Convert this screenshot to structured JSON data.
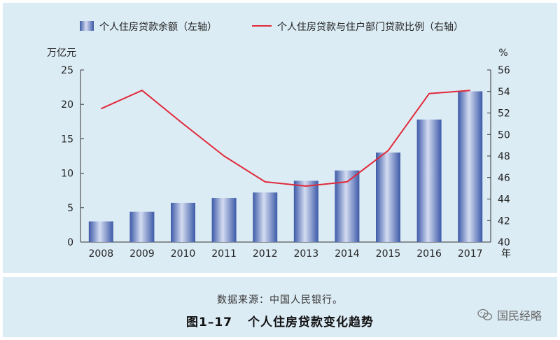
{
  "chart_data": {
    "type": "bar",
    "categories": [
      "2008",
      "2009",
      "2010",
      "2011",
      "2012",
      "2013",
      "2014",
      "2015",
      "2016",
      "2017"
    ],
    "series": [
      {
        "name": "个人住房贷款余额（左轴）",
        "type": "bar",
        "axis": "left",
        "values": [
          3.0,
          4.4,
          5.7,
          6.4,
          7.2,
          8.9,
          10.4,
          13.0,
          17.8,
          21.9
        ]
      },
      {
        "name": "个人住房贷款与住户部门贷款比例（右轴）",
        "type": "line",
        "axis": "right",
        "values": [
          52.4,
          54.1,
          51.0,
          48.0,
          45.6,
          45.2,
          45.6,
          48.5,
          53.8,
          54.1
        ]
      }
    ],
    "left_axis": {
      "unit": "万亿元",
      "ylim": [
        0,
        25
      ],
      "ticks": [
        "0",
        "5",
        "10",
        "15",
        "20",
        "25"
      ]
    },
    "right_axis": {
      "unit": "%",
      "ylim": [
        40,
        56
      ],
      "ticks": [
        "40",
        "42",
        "44",
        "46",
        "48",
        "50",
        "52",
        "54",
        "56"
      ]
    },
    "x_unit": "年",
    "legend_position": "top",
    "grid": false,
    "colors": {
      "bar_dark": "#3d5aa8",
      "bar_light": "#d4dcf1",
      "line": "#e02a3a",
      "axis": "#333333",
      "panel_bg": "#dcecf5"
    }
  },
  "caption": {
    "source": "数据来源：中国人民银行。",
    "figure_number": "图1–17",
    "title": "个人住房贷款变化趋势"
  },
  "watermark": {
    "text": "国民经略",
    "icon": "wechat-icon"
  }
}
